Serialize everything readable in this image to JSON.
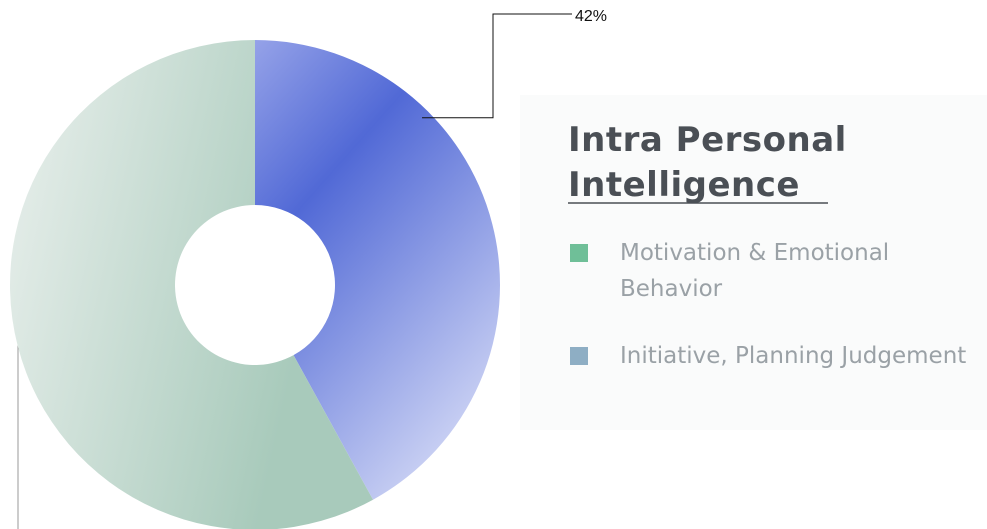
{
  "chart_data": {
    "type": "donut",
    "title": "Intra Personal Intelligence",
    "categories": [
      "Motivation & Emotional Behavior",
      "Initiative, Planning Judgement"
    ],
    "values": [
      58,
      42
    ],
    "value_labels": [
      null,
      "42%"
    ],
    "colors": [
      "#6fbf98",
      "#8eaec4"
    ],
    "legend": "right"
  }
}
